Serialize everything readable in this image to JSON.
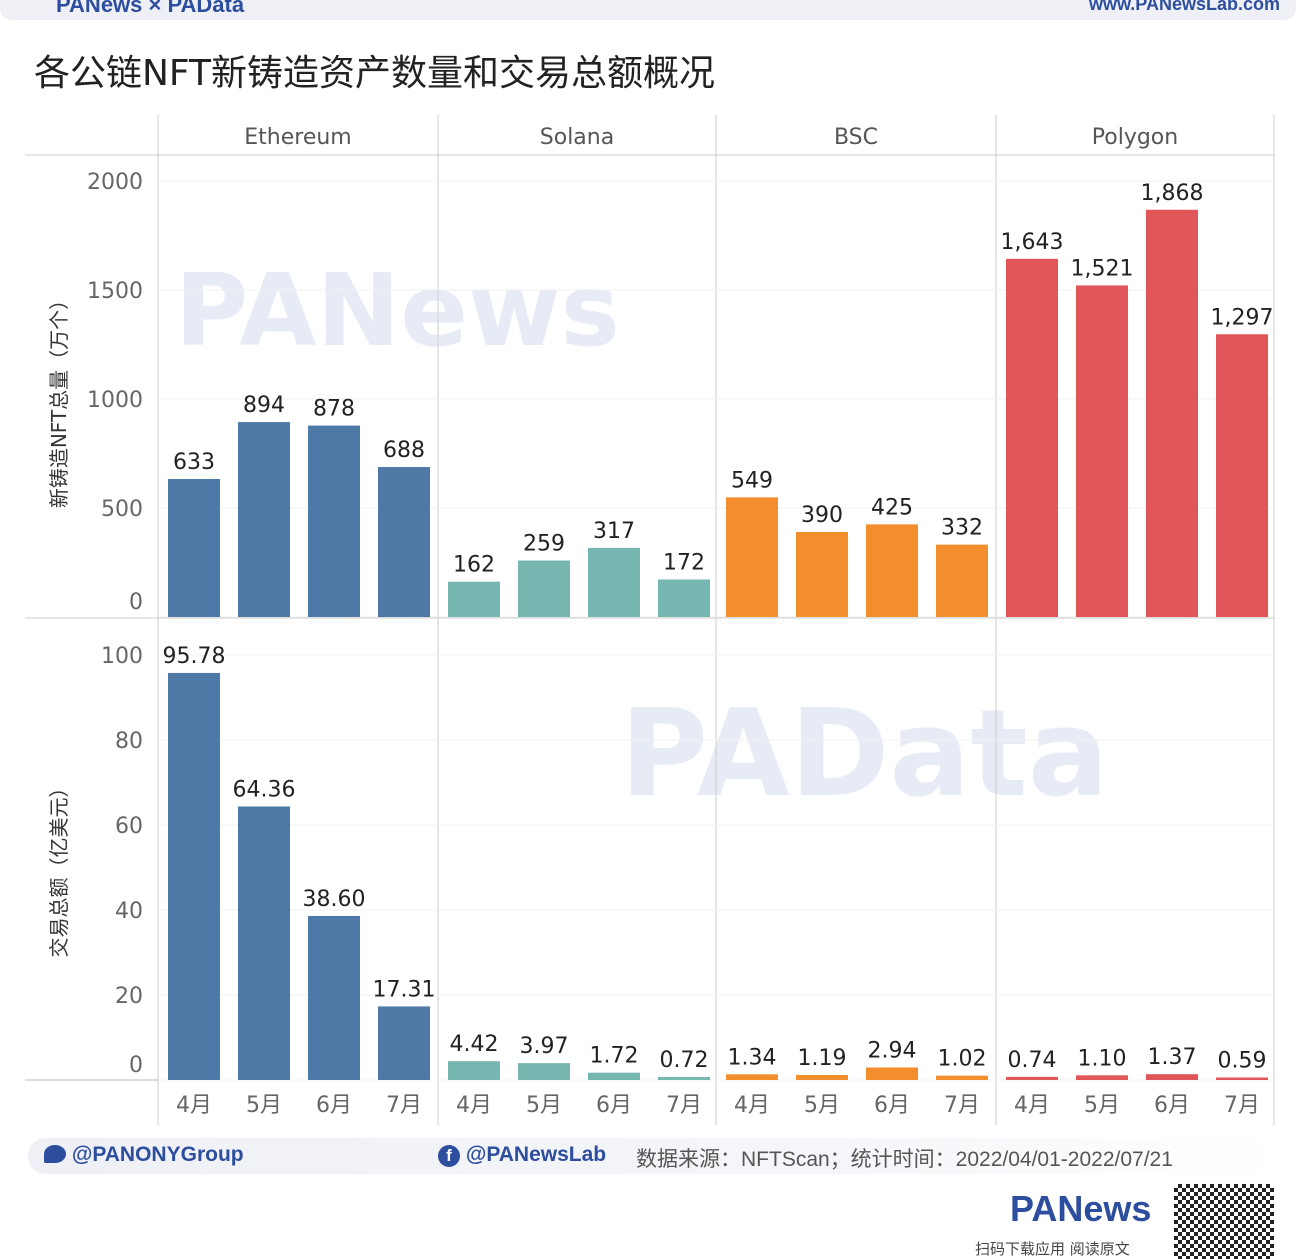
{
  "header": {
    "brand": "PANews × PAData",
    "site": "www.PANewsLab.com"
  },
  "title": "各公链NFT新铸造资产数量和交易总额概况",
  "footer": {
    "twitter": "@PANONYGroup",
    "facebook": "@PANewsLab",
    "source": "数据来源：NFTScan；统计时间：2022/04/01-2022/07/21",
    "logo": "PANews",
    "scan": "扫码下载应用  阅读原文"
  },
  "watermarks": [
    "PANews",
    "PAData"
  ],
  "chart_data": {
    "type": "bar",
    "title": "各公链NFT新铸造资产数量和交易总额概况",
    "panels": [
      "Ethereum",
      "Solana",
      "BSC",
      "Polygon"
    ],
    "colors": {
      "Ethereum": "#4e79a7",
      "Solana": "#76b7b2",
      "BSC": "#f28e2b",
      "Polygon": "#e15759"
    },
    "categories": [
      "4月",
      "5月",
      "6月",
      "7月"
    ],
    "rows": [
      {
        "ylabel": "新铸造NFT总量（万个）",
        "ylim": [
          0,
          2000
        ],
        "ticks": [
          0,
          500,
          1000,
          1500,
          2000
        ],
        "format": "int",
        "series": {
          "Ethereum": [
            633,
            894,
            878,
            688
          ],
          "Solana": [
            162,
            259,
            317,
            172
          ],
          "BSC": [
            549,
            390,
            425,
            332
          ],
          "Polygon": [
            1643,
            1521,
            1868,
            1297
          ]
        }
      },
      {
        "ylabel": "交易总额（亿美元）",
        "ylim": [
          0,
          100
        ],
        "ticks": [
          0,
          20,
          40,
          60,
          80,
          100
        ],
        "format": "dec2",
        "series": {
          "Ethereum": [
            95.78,
            64.36,
            38.6,
            17.31
          ],
          "Solana": [
            4.42,
            3.97,
            1.72,
            0.72
          ],
          "BSC": [
            1.34,
            1.19,
            2.94,
            1.02
          ],
          "Polygon": [
            0.74,
            1.1,
            1.37,
            0.59
          ]
        }
      }
    ]
  }
}
